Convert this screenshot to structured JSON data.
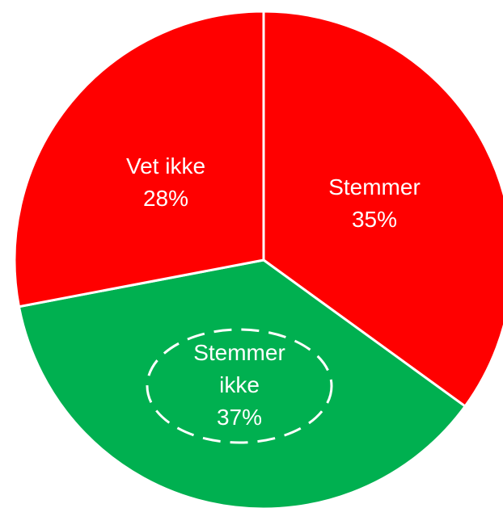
{
  "chart_data": {
    "type": "pie",
    "categories": [
      "Stemmer",
      "Stemmer ikke",
      "Vet ikke"
    ],
    "values": [
      35,
      37,
      28
    ],
    "value_labels": [
      "35%",
      "37%",
      "28%"
    ],
    "colors": [
      "#ff0000",
      "#00b050",
      "#ff0000"
    ]
  }
}
